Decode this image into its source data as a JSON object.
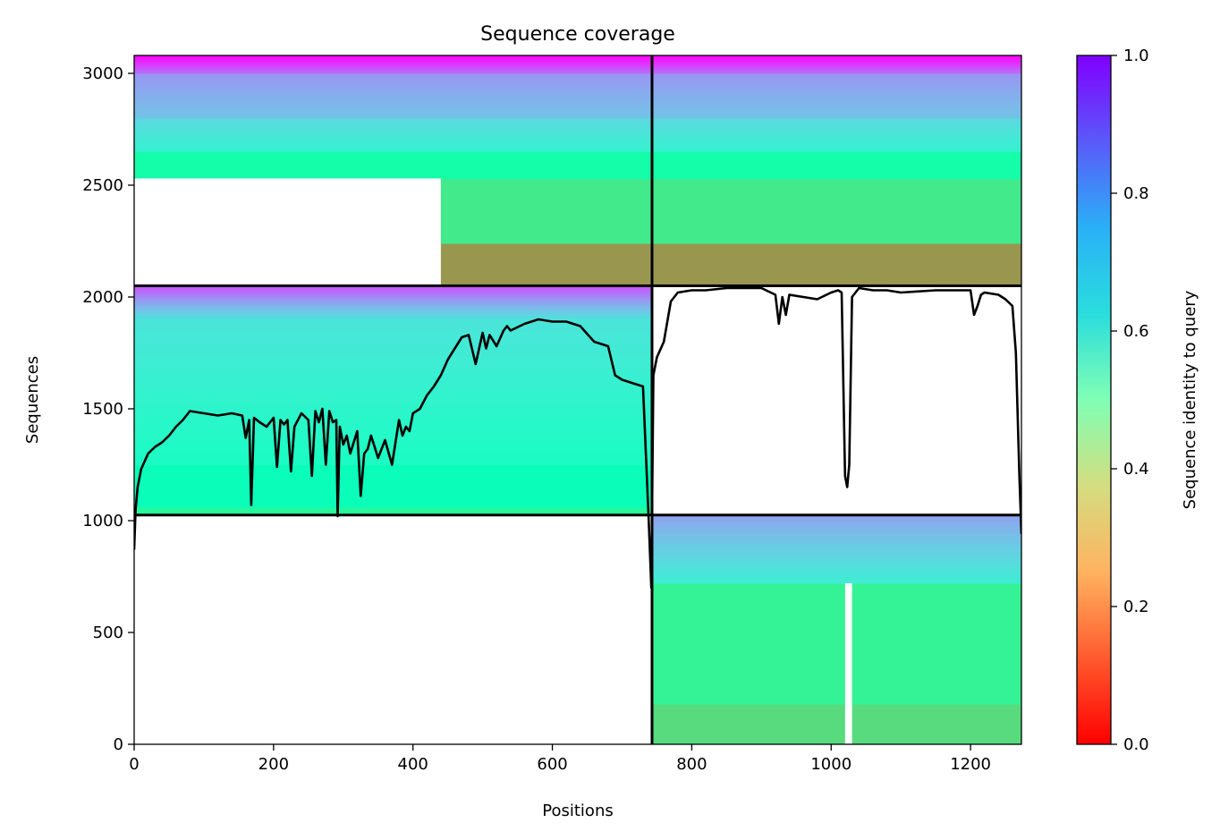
{
  "chart_data": {
    "type": "heatmap",
    "title": "Sequence coverage",
    "xlabel": "Positions",
    "ylabel": "Sequences",
    "xlim": [
      0,
      1273
    ],
    "ylim": [
      0,
      3080
    ],
    "xticks": [
      0,
      200,
      400,
      600,
      800,
      1000,
      1200
    ],
    "yticks": [
      0,
      500,
      1000,
      1500,
      2000,
      2500,
      3000
    ],
    "xtick_labels": [
      "0",
      "200",
      "400",
      "600",
      "800",
      "1000",
      "1200"
    ],
    "ytick_labels": [
      "0",
      "500",
      "1000",
      "1500",
      "2000",
      "2500",
      "3000"
    ],
    "grid": false,
    "colorbar": {
      "label": "Sequence identity to query",
      "range": [
        0,
        1
      ],
      "ticks": [
        0.0,
        0.2,
        0.4,
        0.6,
        0.8,
        1.0
      ],
      "tick_labels": [
        "0.0",
        "0.2",
        "0.4",
        "0.6",
        "0.8",
        "1.0"
      ],
      "colormap": "rainbow_r"
    },
    "divider_lines": {
      "vertical_x": 743,
      "horizontal_y": [
        1025,
        2050
      ]
    },
    "coverage_blocks": [
      {
        "name": "bottom-right",
        "x0": 743,
        "x1": 1273,
        "y0": 0,
        "y1": 1025,
        "bands": [
          {
            "y0": 0,
            "y1": 180,
            "identity": 0.33
          },
          {
            "y0": 180,
            "y1": 720,
            "identity": 0.4
          },
          {
            "y0": 720,
            "y1": 1025,
            "identity": [
              0.62,
              0.78
            ]
          }
        ],
        "gap_x": [
          1020,
          1030
        ]
      },
      {
        "name": "middle-left",
        "x0": 0,
        "x1": 743,
        "y0": 1025,
        "y1": 2050,
        "bands": [
          {
            "y0": 1025,
            "y1": 1060,
            "identity": 0.42
          },
          {
            "y0": 1060,
            "y1": 1250,
            "identity": 0.52
          },
          {
            "y0": 1250,
            "y1": 1900,
            "identity": [
              0.55,
              0.65
            ]
          },
          {
            "y0": 1900,
            "y1": 2050,
            "identity": [
              0.65,
              0.9
            ]
          }
        ]
      },
      {
        "name": "top-left",
        "x0": 0,
        "x1": 743,
        "y0": 2050,
        "y1": 3080,
        "bands": [
          {
            "y0": 2050,
            "y1": 2240,
            "identity": 0.2
          },
          {
            "y0": 2240,
            "y1": 2530,
            "identity": 0.37
          },
          {
            "y0": 2530,
            "y1": 2650,
            "identity": 0.46
          },
          {
            "y0": 2650,
            "y1": 2800,
            "identity": [
              0.6,
              0.68
            ]
          },
          {
            "y0": 2800,
            "y1": 3000,
            "identity": [
              0.72,
              0.8
            ]
          },
          {
            "y0": 3000,
            "y1": 3080,
            "identity": [
              0.85,
              1.0
            ]
          }
        ],
        "empty_region": {
          "x0": 0,
          "x1": 440,
          "y0": 2050,
          "y1": 2530
        }
      },
      {
        "name": "top-right",
        "x0": 743,
        "x1": 1273,
        "y0": 2050,
        "y1": 3080,
        "bands": [
          {
            "y0": 2050,
            "y1": 2240,
            "identity": 0.2
          },
          {
            "y0": 2240,
            "y1": 2530,
            "identity": 0.37
          },
          {
            "y0": 2530,
            "y1": 2650,
            "identity": 0.46
          },
          {
            "y0": 2650,
            "y1": 2800,
            "identity": [
              0.6,
              0.68
            ]
          },
          {
            "y0": 2800,
            "y1": 3000,
            "identity": [
              0.72,
              0.8
            ]
          },
          {
            "y0": 3000,
            "y1": 3080,
            "identity": [
              0.85,
              1.0
            ]
          }
        ]
      }
    ],
    "coverage_line": {
      "x": [
        0,
        2,
        5,
        10,
        20,
        30,
        40,
        50,
        60,
        70,
        80,
        100,
        120,
        140,
        155,
        160,
        165,
        168,
        172,
        180,
        190,
        200,
        205,
        210,
        215,
        220,
        225,
        230,
        240,
        250,
        255,
        260,
        265,
        270,
        275,
        280,
        285,
        290,
        292,
        295,
        300,
        305,
        310,
        320,
        325,
        330,
        335,
        340,
        350,
        360,
        370,
        380,
        385,
        390,
        395,
        400,
        410,
        420,
        430,
        440,
        450,
        460,
        470,
        480,
        490,
        500,
        505,
        510,
        520,
        530,
        535,
        540,
        560,
        580,
        600,
        620,
        640,
        660,
        680,
        690,
        700,
        710,
        720,
        730,
        738,
        742,
        745,
        750,
        760,
        770,
        780,
        800,
        820,
        850,
        880,
        900,
        920,
        925,
        930,
        935,
        940,
        960,
        980,
        1000,
        1010,
        1015,
        1020,
        1023,
        1026,
        1030,
        1040,
        1060,
        1080,
        1100,
        1150,
        1200,
        1205,
        1210,
        1215,
        1220,
        1240,
        1250,
        1260,
        1265,
        1270,
        1273
      ],
      "y": [
        870,
        1050,
        1150,
        1230,
        1300,
        1330,
        1350,
        1380,
        1420,
        1450,
        1490,
        1480,
        1470,
        1480,
        1470,
        1370,
        1450,
        1070,
        1460,
        1440,
        1420,
        1460,
        1240,
        1450,
        1430,
        1450,
        1220,
        1420,
        1480,
        1450,
        1200,
        1490,
        1440,
        1500,
        1250,
        1490,
        1440,
        1450,
        1020,
        1420,
        1340,
        1380,
        1300,
        1400,
        1110,
        1300,
        1320,
        1380,
        1280,
        1360,
        1250,
        1450,
        1380,
        1420,
        1400,
        1480,
        1500,
        1560,
        1600,
        1650,
        1720,
        1770,
        1820,
        1830,
        1700,
        1840,
        1770,
        1830,
        1780,
        1850,
        1870,
        1850,
        1880,
        1900,
        1890,
        1890,
        1870,
        1800,
        1780,
        1650,
        1630,
        1620,
        1610,
        1600,
        1020,
        700,
        1650,
        1730,
        1800,
        1980,
        2020,
        2030,
        2030,
        2040,
        2040,
        2040,
        2010,
        1880,
        2000,
        1920,
        2010,
        2000,
        1990,
        2020,
        2030,
        2020,
        1200,
        1150,
        1250,
        2000,
        2040,
        2030,
        2030,
        2020,
        2030,
        2030,
        1920,
        1960,
        2010,
        2020,
        2010,
        1990,
        1960,
        1750,
        1200,
        940
      ]
    }
  }
}
